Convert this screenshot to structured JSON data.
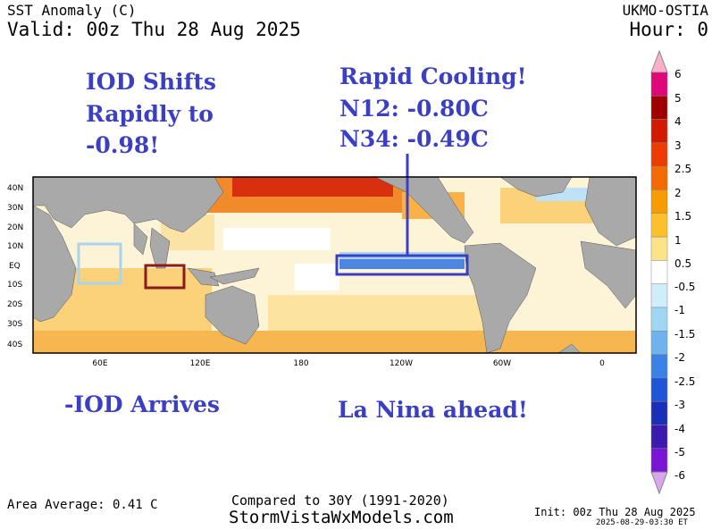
{
  "header": {
    "product": "SST Anomaly (C)",
    "valid": "Valid: 00z Thu 28 Aug 2025",
    "model": "UKMO-OSTIA",
    "hour": "Hour: 0"
  },
  "annotations": {
    "iod_shift_1": "IOD Shifts",
    "iod_shift_2": "Rapidly to",
    "iod_shift_3": "-0.98!",
    "cooling_1": "Rapid Cooling!",
    "cooling_2": "N12: -0.80C",
    "cooling_3": "N34: -0.49C",
    "iod_arrives": "-IOD Arrives",
    "la_nina": "La Nina ahead!"
  },
  "map": {
    "lat_labels": [
      "40N",
      "30N",
      "20N",
      "10N",
      "EQ",
      "10S",
      "20S",
      "30S",
      "40S"
    ],
    "lon_labels": [
      "60E",
      "120E",
      "180",
      "120W",
      "60W",
      "0"
    ],
    "land_color": "#a9a9a9",
    "box_colors": {
      "iod_west": "#a8d4ec",
      "iod_east": "#8b1a1a",
      "nino": "#3a3fc4"
    }
  },
  "colorbar": {
    "labels": [
      "6",
      "5",
      "4",
      "3",
      "2.5",
      "2",
      "1.5",
      "1",
      "0.5",
      "-0.5",
      "-1",
      "-1.5",
      "-2",
      "-2.5",
      "-3",
      "-4",
      "-5",
      "-6"
    ],
    "colors": [
      "#e0077a",
      "#a10000",
      "#d11a00",
      "#ee3b00",
      "#f56a00",
      "#f99a00",
      "#fbc02c",
      "#fde387",
      "#ffffff",
      "#cfeefa",
      "#9fd6f4",
      "#6fb3ee",
      "#3c82e6",
      "#1f55d8",
      "#1a2fb8",
      "#3b1ab0",
      "#7a14d6"
    ],
    "top_arrow": "#f6b0c8",
    "bottom_arrow": "#d9a7ee"
  },
  "footer": {
    "area_average": "Area Average: 0.41 C",
    "compared": "Compared to 30Y (1991-2020)",
    "site": "StormVistaWxModels.com",
    "init": "Init: 00z Thu 28 Aug 2025",
    "timestamp": "2025-08-29-03:30 ET"
  }
}
